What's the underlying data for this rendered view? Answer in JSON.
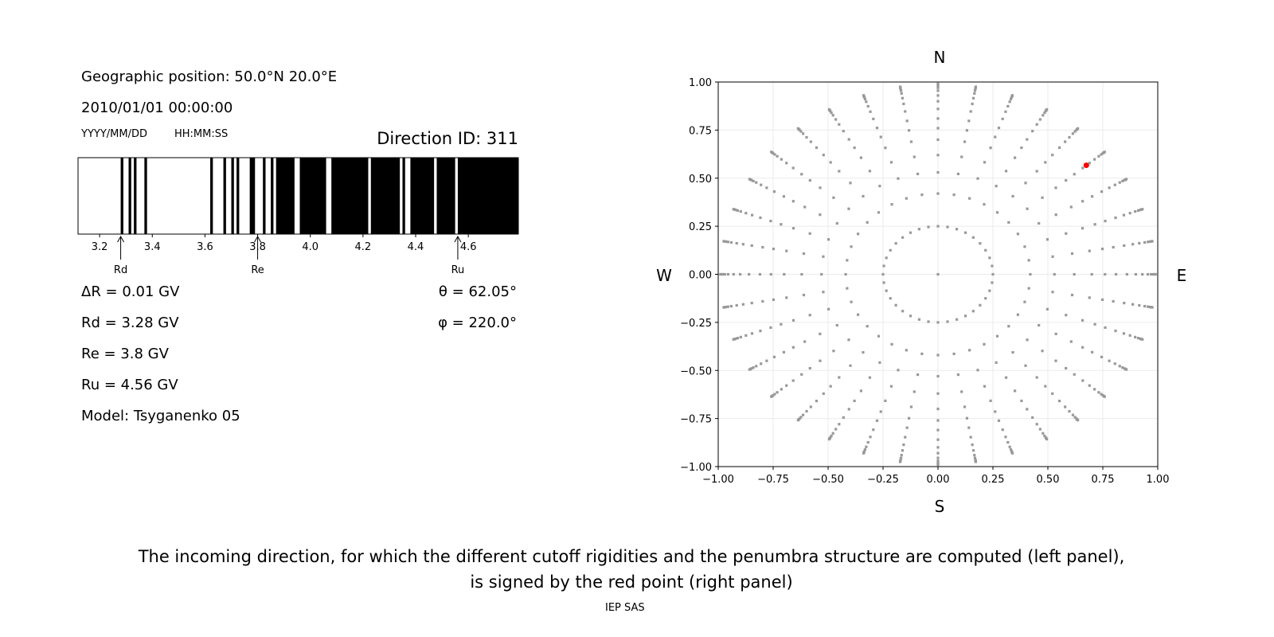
{
  "left_panel": {
    "geo_position": "Geographic position: 50.0°N 20.0°E",
    "datetime": "2010/01/01 00:00:00",
    "date_format": "YYYY/MM/DD",
    "time_format": "HH:MM:SS",
    "direction_id": "Direction ID: 311",
    "params": [
      "ΔR = 0.01 GV",
      "Rd = 3.28 GV",
      "Re = 3.8 GV",
      "Ru = 4.56 GV",
      "Model: Tsyganenko 05"
    ],
    "theta": "θ = 62.05°",
    "phi": "φ = 220.0°"
  },
  "caption": {
    "line1": "The incoming direction, for which the different cutoff rigidities and the penumbra structure are computed (left panel),",
    "line2": "is signed by the red point (right panel)",
    "credit": "IEP SAS"
  },
  "chart_data": [
    {
      "type": "bar",
      "description_kind": "penumbra",
      "xlim": [
        3.118,
        4.79
      ],
      "xticks": [
        "3.2",
        "3.4",
        "3.6",
        "3.8",
        "4.0",
        "4.2",
        "4.4",
        "4.6"
      ],
      "forbidden_color": "#000000",
      "allowed_color": "#ffffff",
      "forbidden_intervals": [
        [
          3.28,
          3.29
        ],
        [
          3.31,
          3.32
        ],
        [
          3.33,
          3.34
        ],
        [
          3.37,
          3.38
        ],
        [
          3.62,
          3.63
        ],
        [
          3.67,
          3.68
        ],
        [
          3.7,
          3.71
        ],
        [
          3.72,
          3.73
        ],
        [
          3.77,
          3.79
        ],
        [
          3.82,
          3.83
        ],
        [
          3.85,
          3.86
        ],
        [
          3.87,
          3.94
        ],
        [
          3.96,
          4.06
        ],
        [
          4.08,
          4.22
        ],
        [
          4.23,
          4.34
        ],
        [
          4.35,
          4.36
        ],
        [
          4.38,
          4.47
        ],
        [
          4.48,
          4.55
        ],
        [
          4.56,
          4.79
        ]
      ],
      "annotations": [
        {
          "label": "Rd",
          "x": 3.28
        },
        {
          "label": "Re",
          "x": 3.8
        },
        {
          "label": "Ru",
          "x": 4.56
        }
      ]
    },
    {
      "type": "scatter",
      "xlim": [
        -1,
        1
      ],
      "ylim": [
        -1,
        1
      ],
      "xticks": [
        "−1.00",
        "−0.75",
        "−0.50",
        "−0.25",
        "0.00",
        "0.25",
        "0.50",
        "0.75",
        "1.00"
      ],
      "yticks": [
        "−1.00",
        "−0.75",
        "−0.50",
        "−0.25",
        "0.00",
        "0.25",
        "0.50",
        "0.75",
        "1.00"
      ],
      "grid": true,
      "compass": {
        "top": "N",
        "bottom": "S",
        "left": "W",
        "right": "E"
      },
      "point_color": "#999999",
      "highlight_color": "#ff0000",
      "azimuth_step_deg": 10,
      "ring_radii": [
        0,
        0.25,
        0.42,
        0.53,
        0.62,
        0.7,
        0.76,
        0.81,
        0.86,
        0.9,
        0.93,
        0.955,
        0.97,
        0.98,
        0.985,
        0.99
      ],
      "highlight_point": {
        "x": 0.675,
        "y": 0.567
      }
    }
  ]
}
